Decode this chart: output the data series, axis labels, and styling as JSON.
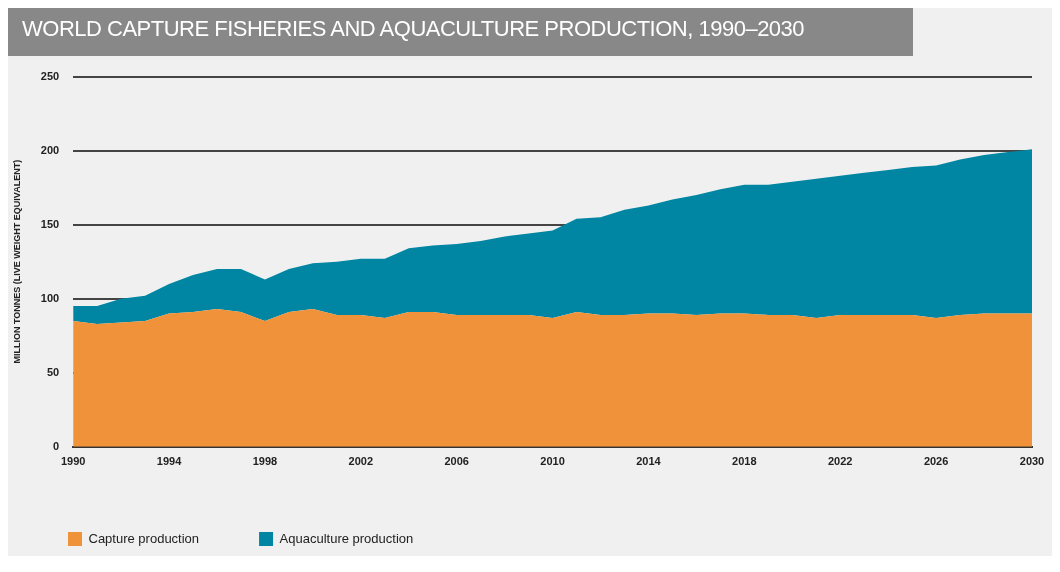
{
  "chart_data": {
    "type": "area",
    "title": "WORLD CAPTURE FISHERIES AND AQUACULTURE PRODUCTION, 1990–2030",
    "ylabel": "MILLION TONNES (LIVE WEIGHT EQUIVALENT)",
    "x": [
      1990,
      1991,
      1992,
      1993,
      1994,
      1995,
      1996,
      1997,
      1998,
      1999,
      2000,
      2001,
      2002,
      2003,
      2004,
      2005,
      2006,
      2007,
      2008,
      2009,
      2010,
      2011,
      2012,
      2013,
      2014,
      2015,
      2016,
      2017,
      2018,
      2019,
      2020,
      2021,
      2022,
      2023,
      2024,
      2025,
      2026,
      2027,
      2028,
      2029,
      2030
    ],
    "stacked": true,
    "series": [
      {
        "name": "Capture production",
        "color": "#f0923a",
        "values": [
          85,
          83,
          84,
          85,
          90,
          91,
          93,
          91,
          85,
          91,
          93,
          89,
          89,
          87,
          91,
          91,
          89,
          89,
          89,
          89,
          87,
          91,
          89,
          89,
          90,
          90,
          89,
          90,
          90,
          89,
          89,
          87,
          89,
          89,
          89,
          89,
          87,
          89,
          90,
          90,
          90
        ]
      },
      {
        "name": "Aquaculture production",
        "color": "#0086a3",
        "values": [
          10,
          12,
          16,
          17,
          20,
          25,
          27,
          29,
          28,
          29,
          31,
          36,
          38,
          40,
          43,
          45,
          48,
          50,
          53,
          55,
          59,
          63,
          66,
          71,
          73,
          77,
          81,
          84,
          87,
          88,
          90,
          94,
          94,
          96,
          98,
          100,
          103,
          105,
          107,
          109,
          111
        ]
      }
    ],
    "xlim": [
      1990,
      2030
    ],
    "xticks": [
      1990,
      1994,
      1998,
      2002,
      2006,
      2010,
      2014,
      2018,
      2022,
      2026,
      2030
    ],
    "ylim": [
      0,
      250
    ],
    "yticks": [
      0,
      50,
      100,
      150,
      200,
      250
    ],
    "grid": "y",
    "legend": "bottom left"
  }
}
